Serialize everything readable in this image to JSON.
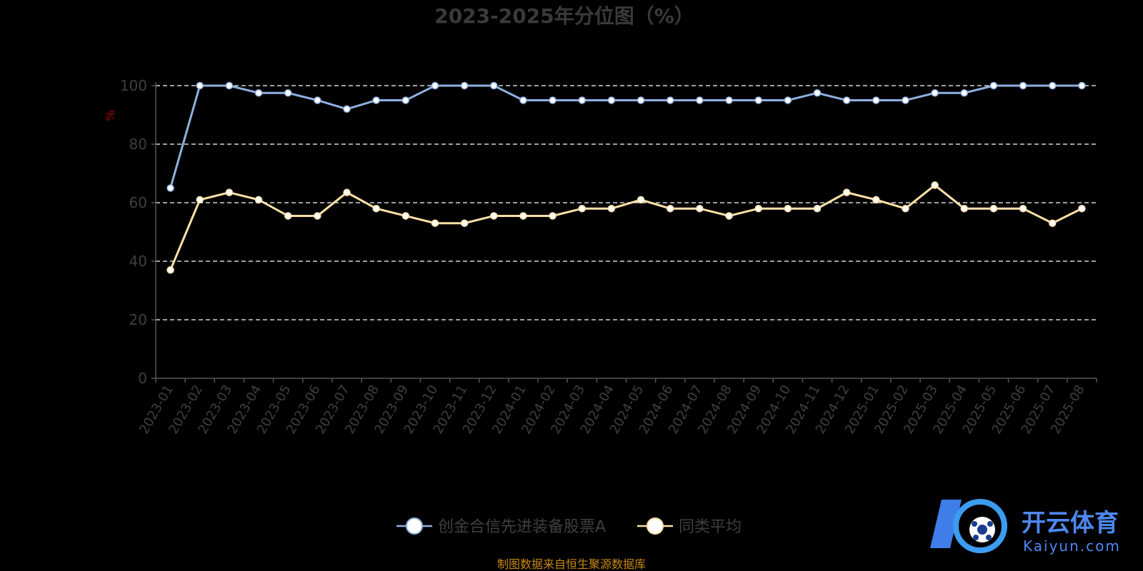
{
  "chart_data": {
    "type": "line",
    "title": "2023-2025年分位图（%）",
    "ylabel": "%",
    "ylim": [
      0,
      100
    ],
    "yticks": [
      0,
      20,
      40,
      60,
      80,
      100
    ],
    "grid": true,
    "legend_position": "bottom",
    "categories": [
      "2023-01",
      "2023-02",
      "2023-03",
      "2023-04",
      "2023-05",
      "2023-06",
      "2023-07",
      "2023-08",
      "2023-09",
      "2023-10",
      "2023-11",
      "2023-12",
      "2024-01",
      "2024-02",
      "2024-03",
      "2024-04",
      "2024-05",
      "2024-06",
      "2024-07",
      "2024-08",
      "2024-09",
      "2024-10",
      "2024-11",
      "2024-12",
      "2025-01",
      "2025-02",
      "2025-03",
      "2025-04",
      "2025-05",
      "2025-06",
      "2025-07",
      "2025-08"
    ],
    "series": [
      {
        "name": "创金合信先进装备股票A",
        "color": "#8fb0e0",
        "values": [
          65,
          100,
          100,
          97.5,
          97.5,
          95,
          92,
          95,
          95,
          100,
          100,
          100,
          95,
          95,
          95,
          95,
          95,
          95,
          95,
          95,
          95,
          95,
          97.5,
          95,
          95,
          95,
          97.5,
          97.5,
          100,
          100,
          100,
          100
        ]
      },
      {
        "name": "同类平均",
        "color": "#ffe0a8",
        "values": [
          37,
          61,
          63.5,
          61,
          55.5,
          55.5,
          63.5,
          58,
          55.5,
          53,
          53,
          55.5,
          55.5,
          55.5,
          58,
          58,
          61,
          58,
          58,
          55.5,
          58,
          58,
          58,
          63.5,
          61,
          58,
          66,
          58,
          58,
          58,
          53,
          58
        ]
      }
    ]
  },
  "source_text": "制图数据来自恒生聚源数据库",
  "logo": {
    "name": "开云体育",
    "sub": "Kaiyun.com"
  }
}
